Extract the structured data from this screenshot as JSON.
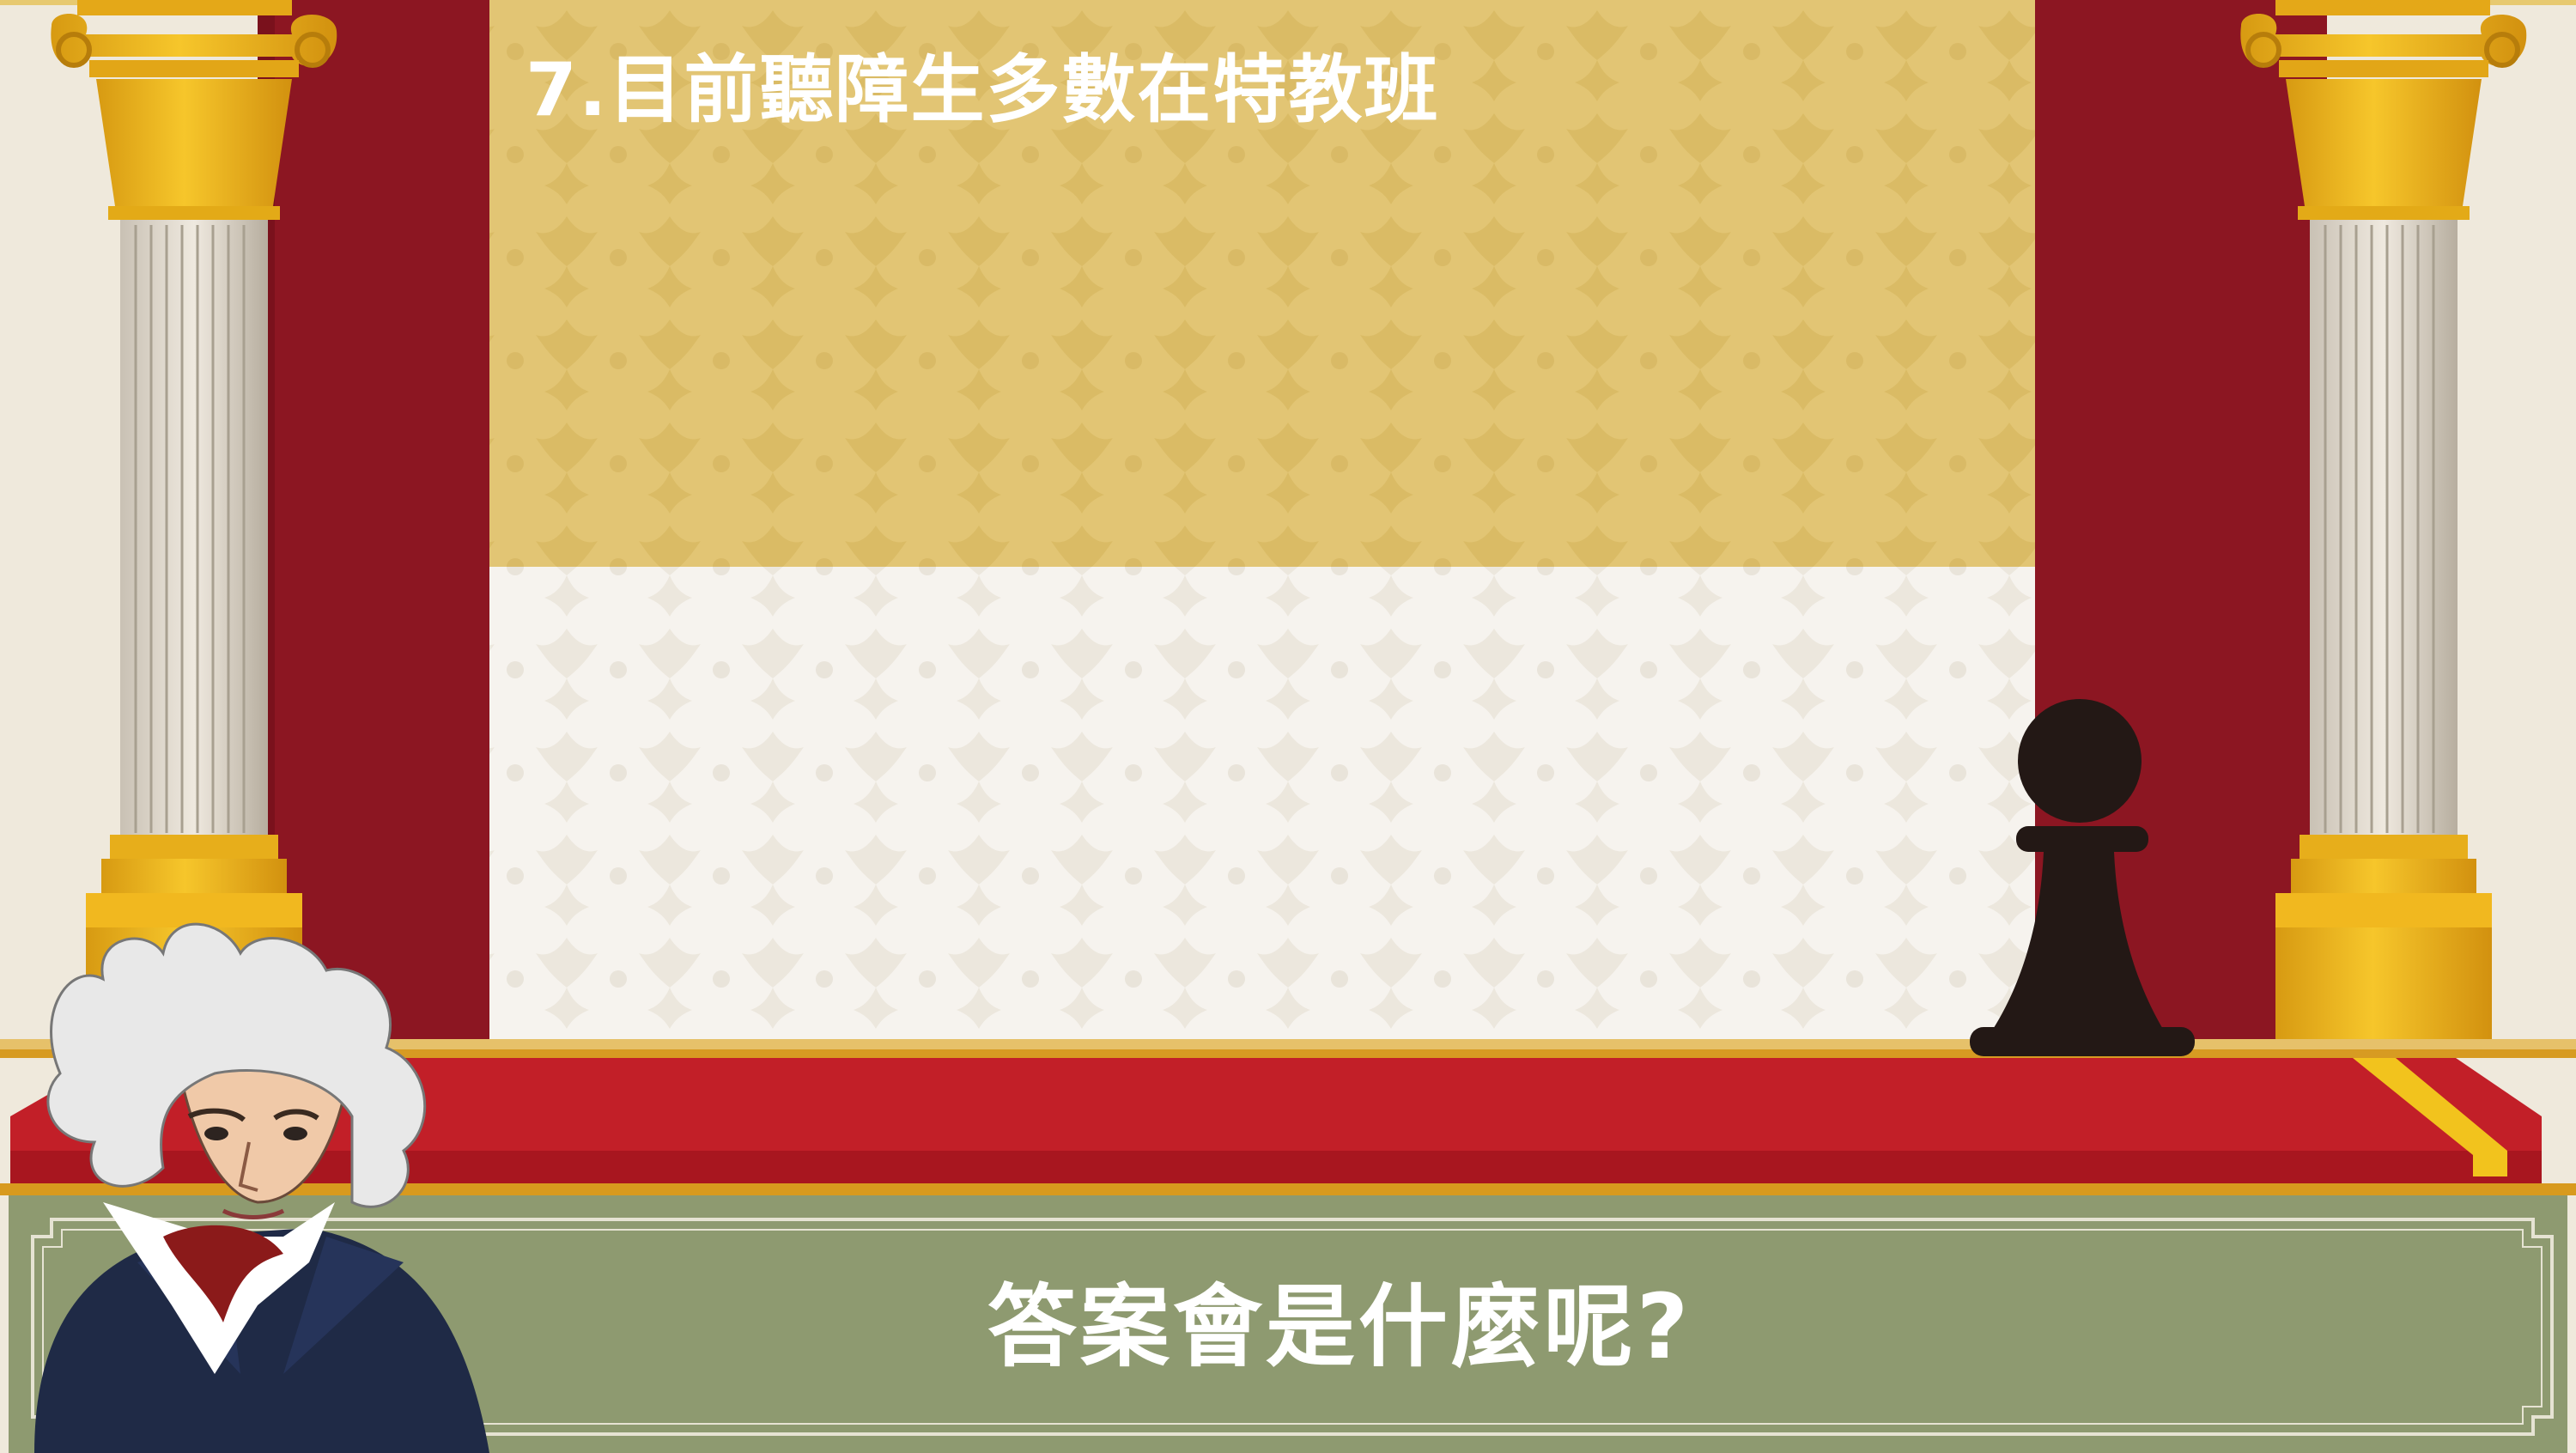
{
  "question": {
    "number": "7",
    "text": "7.目前聽障生多數在特教班"
  },
  "dialog": {
    "prompt": "答案會是什麼呢?"
  },
  "characters": {
    "host": "beethoven-portrait",
    "piece": "black-pawn-icon"
  },
  "colors": {
    "curtain": "#8c1622",
    "wallpaper_gold": "#e2c574",
    "wallpaper_white": "#f6f3ee",
    "carpet": "#c21f28",
    "column_gold": "#f0b71e",
    "dialog_panel": "#8e9a70",
    "pawn": "#231815"
  }
}
